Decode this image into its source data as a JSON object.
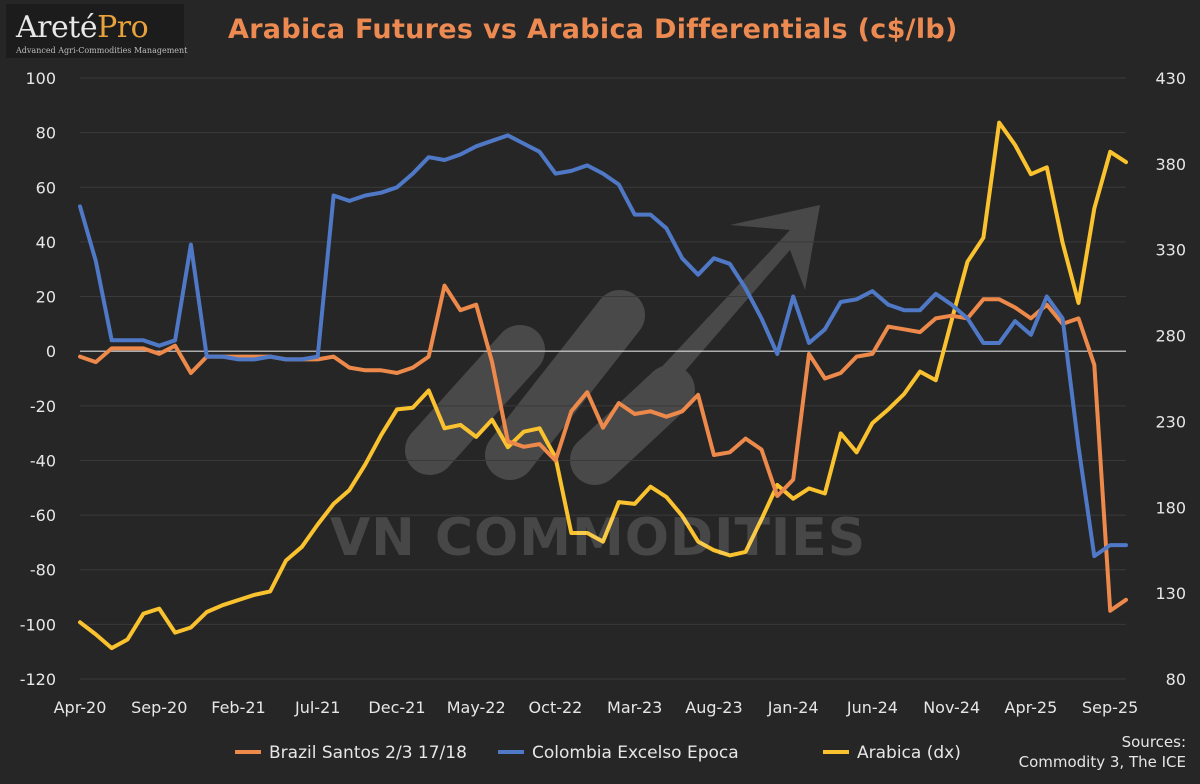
{
  "logo": {
    "main": "Areté",
    "accent": "Pro",
    "tagline": "Advanced Agri-Commodities Management"
  },
  "watermark": "VN COMMODITIES",
  "sources": {
    "line1": "Sources:",
    "line2": "Commodity 3, The ICE"
  },
  "colors": {
    "background": "#262626",
    "title": "#ec8a52",
    "brazil": "#ed8a4b",
    "colombia": "#4f79c6",
    "arabica": "#f9c22e",
    "axis_text": "#e6e6e6",
    "grid": "#3a3a3a"
  },
  "chart_data": {
    "type": "line",
    "title": "Arabica Futures vs Arabica Differentials (c$/lb)",
    "x": [
      "Apr-20",
      "May-20",
      "Jun-20",
      "Jul-20",
      "Aug-20",
      "Sep-20",
      "Oct-20",
      "Nov-20",
      "Dec-20",
      "Jan-21",
      "Feb-21",
      "Mar-21",
      "Apr-21",
      "May-21",
      "Jun-21",
      "Jul-21",
      "Aug-21",
      "Sep-21",
      "Oct-21",
      "Nov-21",
      "Dec-21",
      "Jan-22",
      "Feb-22",
      "Mar-22",
      "Apr-22",
      "May-22",
      "Jun-22",
      "Jul-22",
      "Aug-22",
      "Sep-22",
      "Oct-22",
      "Nov-22",
      "Dec-22",
      "Jan-23",
      "Feb-23",
      "Mar-23",
      "Apr-23",
      "May-23",
      "Jun-23",
      "Jul-23",
      "Aug-23",
      "Sep-23",
      "Oct-23",
      "Nov-23",
      "Dec-23",
      "Jan-24",
      "Feb-24",
      "Mar-24",
      "Apr-24",
      "May-24",
      "Jun-24",
      "Jul-24",
      "Aug-24",
      "Sep-24",
      "Oct-24",
      "Nov-24",
      "Dec-24",
      "Jan-25",
      "Feb-25",
      "Mar-25",
      "Apr-25",
      "May-25",
      "Jun-25",
      "Jul-25",
      "Aug-25",
      "Sep-25",
      "Oct-25"
    ],
    "x_tick_labels": [
      "Apr-20",
      "Sep-20",
      "Feb-21",
      "Jul-21",
      "Dec-21",
      "May-22",
      "Oct-22",
      "Mar-23",
      "Aug-23",
      "Jan-24",
      "Jun-24",
      "Nov-24",
      "Apr-25",
      "Sep-25"
    ],
    "y_left": {
      "min": -120,
      "max": 100,
      "ticks": [
        100,
        80,
        60,
        40,
        20,
        0,
        -20,
        -40,
        -60,
        -80,
        -100,
        -120
      ]
    },
    "y_right": {
      "min": 80,
      "max": 430,
      "ticks": [
        430,
        380,
        330,
        280,
        230,
        180,
        130,
        80
      ]
    },
    "grid": true,
    "legend_position": "bottom",
    "series": [
      {
        "name": "Brazil Santos 2/3 17/18",
        "axis": "left",
        "values": [
          -2,
          -4,
          1,
          1,
          1,
          -1,
          2,
          -8,
          -2,
          -2,
          -2,
          -2,
          -2,
          -3,
          -3,
          -3,
          -2,
          -6,
          -7,
          -7,
          -8,
          -6,
          -2,
          24,
          15,
          17,
          -4,
          -33,
          -35,
          -34,
          -40,
          -22,
          -15,
          -28,
          -19,
          -23,
          -22,
          -24,
          -22,
          -16,
          -38,
          -37,
          -32,
          -36,
          -53,
          -47,
          -1,
          -10,
          -8,
          -2,
          -1,
          9,
          8,
          7,
          12,
          13,
          12,
          19,
          19,
          16,
          12,
          17,
          10,
          12,
          -5,
          -95,
          -91
        ]
      },
      {
        "name": "Colombia Excelso Epoca",
        "axis": "left",
        "values": [
          53,
          33,
          4,
          4,
          4,
          2,
          4,
          39,
          -2,
          -2,
          -3,
          -3,
          -2,
          -3,
          -3,
          -2,
          57,
          55,
          57,
          58,
          60,
          65,
          71,
          70,
          72,
          75,
          77,
          79,
          76,
          73,
          65,
          66,
          68,
          65,
          61,
          50,
          50,
          45,
          34,
          28,
          34,
          32,
          23,
          12,
          -1,
          20,
          3,
          8,
          18,
          19,
          22,
          17,
          15,
          15,
          21,
          17,
          12,
          3,
          3,
          11,
          6,
          20,
          12,
          -35,
          -75,
          -71,
          -71
        ]
      },
      {
        "name": "Arabica (dx)",
        "axis": "right",
        "values": [
          113,
          106,
          98,
          103,
          118,
          121,
          107,
          110,
          119,
          123,
          126,
          129,
          131,
          149,
          157,
          170,
          182,
          190,
          205,
          222,
          237,
          238,
          248,
          226,
          228,
          221,
          231,
          215,
          224,
          226,
          209,
          165,
          165,
          160,
          183,
          182,
          192,
          186,
          175,
          160,
          155,
          152,
          154,
          173,
          193,
          185,
          191,
          188,
          223,
          212,
          229,
          237,
          246,
          259,
          254,
          289,
          323,
          337,
          404,
          391,
          374,
          378,
          334,
          299,
          354,
          387,
          381
        ]
      }
    ]
  }
}
